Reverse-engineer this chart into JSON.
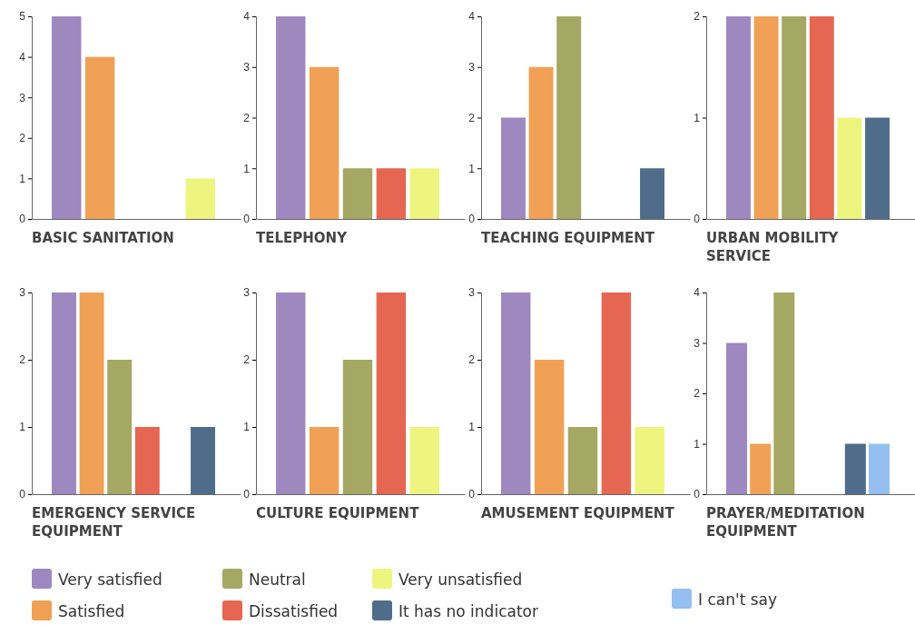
{
  "chart_data": [
    {
      "type": "bar",
      "title": "BASIC SANITATION",
      "categories": [
        null
      ],
      "ylim": [
        0,
        5
      ],
      "yticks": [
        0,
        1,
        2,
        3,
        4,
        5
      ],
      "series": [
        {
          "color": "#9e88c0",
          "values": [
            5
          ]
        },
        {
          "color": "#f0a155",
          "values": [
            4
          ]
        },
        {
          "color": "#a5a862",
          "values": [
            0
          ]
        },
        {
          "color": "#e56752",
          "values": [
            0
          ]
        },
        {
          "color": "#eef57f",
          "values": [
            1
          ]
        }
      ]
    },
    {
      "type": "bar",
      "title": "TELEPHONY",
      "categories": [
        null
      ],
      "ylim": [
        0,
        4
      ],
      "yticks": [
        0,
        1,
        2,
        3,
        4
      ],
      "series": [
        {
          "color": "#9e88c0",
          "values": [
            4
          ]
        },
        {
          "color": "#f0a155",
          "values": [
            3
          ]
        },
        {
          "color": "#a5a862",
          "values": [
            1
          ]
        },
        {
          "color": "#e56752",
          "values": [
            1
          ]
        },
        {
          "color": "#eef57f",
          "values": [
            1
          ]
        }
      ]
    },
    {
      "type": "bar",
      "title": "TEACHING EQUIPMENT",
      "categories": [
        null
      ],
      "ylim": [
        0,
        4
      ],
      "yticks": [
        0,
        1,
        2,
        3,
        4
      ],
      "series": [
        {
          "color": "#9e88c0",
          "values": [
            2
          ]
        },
        {
          "color": "#f0a155",
          "values": [
            3
          ]
        },
        {
          "color": "#a5a862",
          "values": [
            4
          ]
        },
        {
          "color": "#e56752",
          "values": [
            0
          ]
        },
        {
          "color": "#eef57f",
          "values": [
            0
          ]
        },
        {
          "color": "#506c8b",
          "values": [
            1
          ]
        }
      ]
    },
    {
      "type": "bar",
      "title": "URBAN MOBILITY SERVICE",
      "categories": [
        null
      ],
      "ylim": [
        0,
        2
      ],
      "yticks": [
        0,
        1,
        2
      ],
      "series": [
        {
          "color": "#9e88c0",
          "values": [
            2
          ]
        },
        {
          "color": "#f0a155",
          "values": [
            2
          ]
        },
        {
          "color": "#a5a862",
          "values": [
            2
          ]
        },
        {
          "color": "#e56752",
          "values": [
            2
          ]
        },
        {
          "color": "#eef57f",
          "values": [
            1
          ]
        },
        {
          "color": "#506c8b",
          "values": [
            1
          ]
        }
      ]
    },
    {
      "type": "bar",
      "title": "EMERGENCY SERVICE EQUIPMENT",
      "categories": [
        null
      ],
      "ylim": [
        0,
        3
      ],
      "yticks": [
        0,
        1,
        2,
        3
      ],
      "series": [
        {
          "color": "#9e88c0",
          "values": [
            3
          ]
        },
        {
          "color": "#f0a155",
          "values": [
            3
          ]
        },
        {
          "color": "#a5a862",
          "values": [
            2
          ]
        },
        {
          "color": "#e56752",
          "values": [
            1
          ]
        },
        {
          "color": "#eef57f",
          "values": [
            0
          ]
        },
        {
          "color": "#506c8b",
          "values": [
            1
          ]
        }
      ]
    },
    {
      "type": "bar",
      "title": "CULTURE EQUIPMENT",
      "categories": [
        null
      ],
      "ylim": [
        0,
        3
      ],
      "yticks": [
        0,
        1,
        2,
        3
      ],
      "series": [
        {
          "color": "#9e88c0",
          "values": [
            3
          ]
        },
        {
          "color": "#f0a155",
          "values": [
            1
          ]
        },
        {
          "color": "#a5a862",
          "values": [
            2
          ]
        },
        {
          "color": "#e56752",
          "values": [
            3
          ]
        },
        {
          "color": "#eef57f",
          "values": [
            1
          ]
        }
      ]
    },
    {
      "type": "bar",
      "title": "AMUSEMENT EQUIPMENT",
      "categories": [
        null
      ],
      "ylim": [
        0,
        3
      ],
      "yticks": [
        0,
        1,
        2,
        3
      ],
      "series": [
        {
          "color": "#9e88c0",
          "values": [
            3
          ]
        },
        {
          "color": "#f0a155",
          "values": [
            2
          ]
        },
        {
          "color": "#a5a862",
          "values": [
            1
          ]
        },
        {
          "color": "#e56752",
          "values": [
            3
          ]
        },
        {
          "color": "#eef57f",
          "values": [
            1
          ]
        }
      ]
    },
    {
      "type": "bar",
      "title": "PRAYER/MEDITATION EQUIPMENT",
      "categories": [
        null
      ],
      "ylim": [
        0,
        4
      ],
      "yticks": [
        0,
        1,
        2,
        3,
        4
      ],
      "legend": "bottom",
      "series": [
        {
          "name": "Very satisfied",
          "color": "#9e88c0",
          "values": [
            3
          ]
        },
        {
          "name": "Satisfied",
          "color": "#f0a155",
          "values": [
            1
          ]
        },
        {
          "name": "Neutral",
          "color": "#a5a862",
          "values": [
            4
          ]
        },
        {
          "name": "Dissatisfied",
          "color": "#e56752",
          "values": [
            0
          ]
        },
        {
          "name": "Very unsatisfied",
          "color": "#eef57f",
          "values": [
            0
          ]
        },
        {
          "name": "It has no indicator",
          "color": "#506c8b",
          "values": [
            1
          ]
        },
        {
          "name": "I can't say",
          "color": "#94bff0",
          "values": [
            1
          ]
        }
      ]
    }
  ]
}
